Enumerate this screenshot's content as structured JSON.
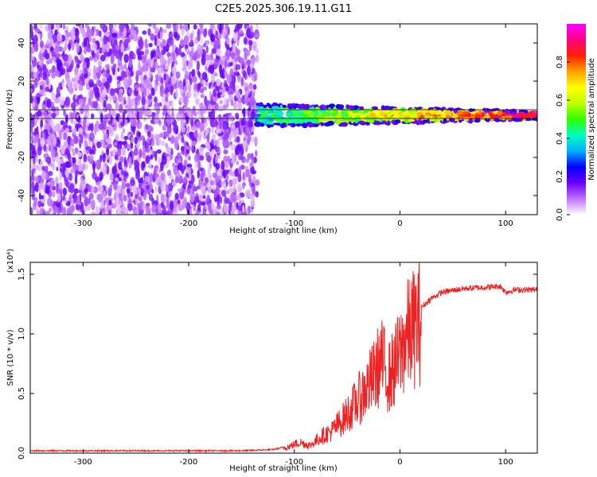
{
  "title": "C2E5.2025.306.19.11.G11",
  "chart_data": [
    {
      "type": "heatmap",
      "title": "C2E5.2025.306.19.11.G11",
      "xlabel": "Height of straight line (km)",
      "ylabel": "Frequency (Hz)",
      "xlim": [
        -350,
        130
      ],
      "ylim": [
        -50,
        50
      ],
      "xticks": [
        -300,
        -200,
        -100,
        0,
        100
      ],
      "yticks": [
        -40,
        -20,
        0,
        20,
        40
      ],
      "description_regions": [
        {
          "x_range": [
            -350,
            -135
          ],
          "freq_range": [
            -50,
            50
          ],
          "amplitude": [
            0.05,
            0.2
          ]
        },
        {
          "x_range": [
            -135,
            130
          ],
          "freq_center": 2,
          "freq_halfwidth": [
            6,
            2
          ],
          "amplitude": [
            0.4,
            1.0
          ]
        }
      ],
      "colorbar": {
        "label": "Normalized spectral amplitude",
        "range": [
          0.0,
          1.0
        ],
        "ticks": [
          0.0,
          0.2,
          0.4,
          0.6,
          0.8
        ],
        "tick_labels": [
          "0.0",
          "0.2",
          "0.4",
          "0.6",
          "0.8"
        ],
        "colors": [
          "#ffffff",
          "#c070ff",
          "#6a00ff",
          "#0000ff",
          "#00b0ff",
          "#00ffc0",
          "#30ff00",
          "#c0ff00",
          "#ffff00",
          "#ffa000",
          "#ff2000",
          "#ff0080",
          "#ff00ff"
        ]
      }
    },
    {
      "type": "line",
      "xlabel": "Height of straight line (km)",
      "ylabel": "SNR (10 * v/v)",
      "ylabel_multiplier": "(x10⁴)",
      "xlim": [
        -350,
        130
      ],
      "ylim": [
        0,
        1.6
      ],
      "xticks": [
        -300,
        -200,
        -100,
        0,
        100
      ],
      "yticks": [
        0.0,
        0.5,
        1.0,
        1.5
      ],
      "ytick_labels": [
        "0.0",
        "0.5",
        "1.0",
        "1.5"
      ],
      "color": "#ee2222",
      "series": [
        {
          "name": "SNR",
          "x": [
            -350,
            -300,
            -250,
            -200,
            -150,
            -120,
            -105,
            -95,
            -85,
            -75,
            -65,
            -55,
            -45,
            -35,
            -25,
            -18,
            -10,
            -5,
            0,
            5,
            10,
            20,
            30,
            40,
            60,
            80,
            95,
            100,
            110,
            120,
            130
          ],
          "y": [
            0.02,
            0.02,
            0.02,
            0.02,
            0.02,
            0.03,
            0.06,
            0.1,
            0.07,
            0.15,
            0.2,
            0.3,
            0.42,
            0.55,
            0.7,
            0.85,
            0.7,
            0.8,
            0.9,
            1.05,
            1.12,
            1.22,
            1.3,
            1.35,
            1.38,
            1.39,
            1.4,
            1.35,
            1.37,
            1.37,
            1.37
          ]
        }
      ]
    }
  ]
}
